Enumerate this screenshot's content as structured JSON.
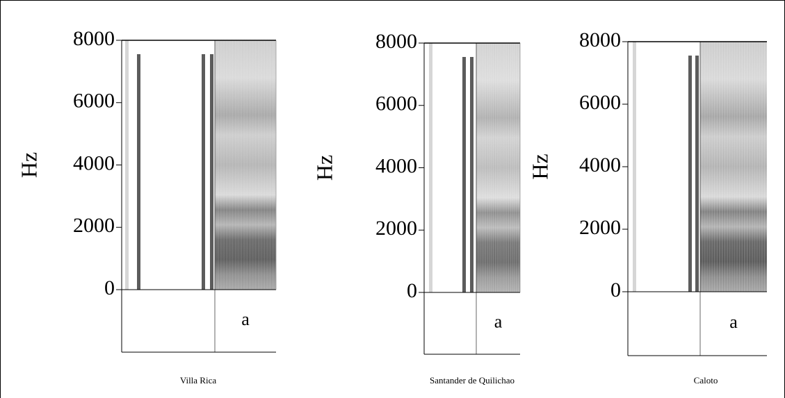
{
  "chart_data": [
    {
      "type": "spectrogram",
      "title": "Villa Rica",
      "ylabel": "Hz",
      "ylim": [
        0,
        8000
      ],
      "yticks": [
        0,
        2000,
        4000,
        6000,
        8000
      ],
      "segment_label": "a"
    },
    {
      "type": "spectrogram",
      "title": "Santander de Quilichao",
      "ylabel": "Hz",
      "ylim": [
        0,
        8000
      ],
      "yticks": [
        0,
        2000,
        4000,
        6000,
        8000
      ],
      "segment_label": "a"
    },
    {
      "type": "spectrogram",
      "title": "Caloto",
      "ylabel": "Hz",
      "ylim": [
        0,
        8000
      ],
      "yticks": [
        0,
        2000,
        4000,
        6000,
        8000
      ],
      "segment_label": "a"
    }
  ]
}
